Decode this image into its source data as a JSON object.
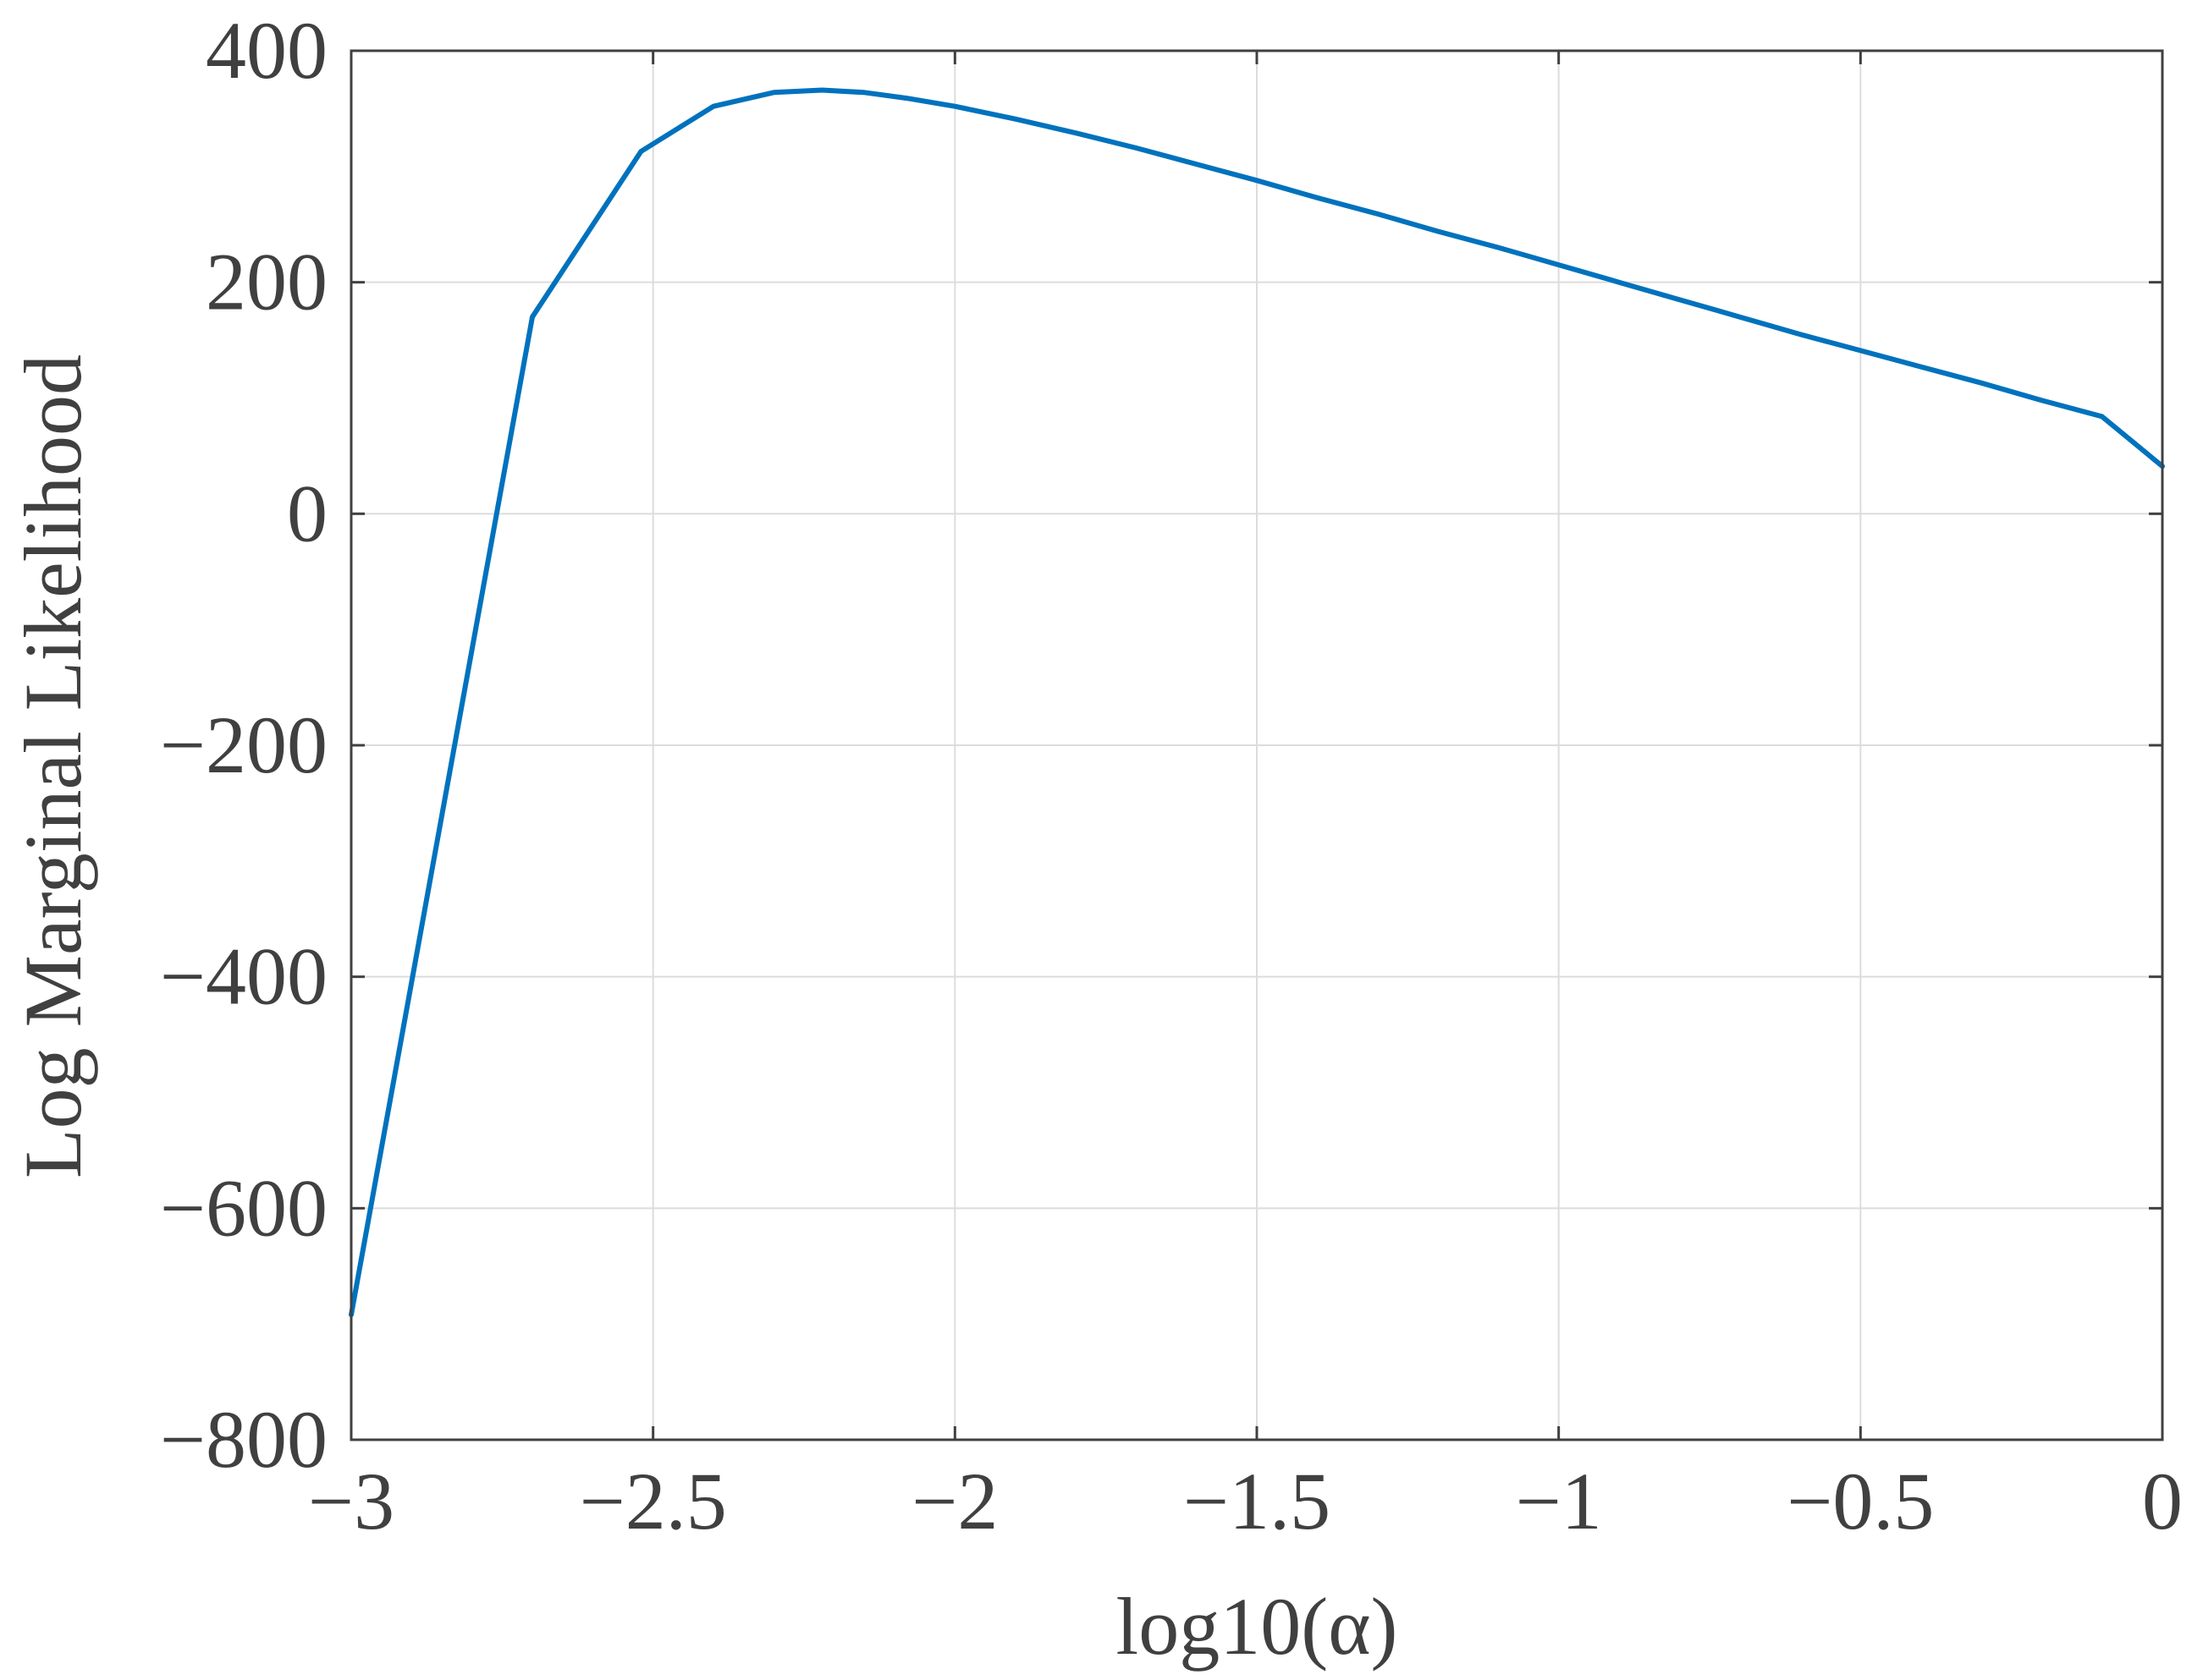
{
  "chart_data": {
    "type": "line",
    "title": "",
    "xlabel": "log10(α)",
    "ylabel": "Log Marginal Likelihood",
    "xlim": [
      -3,
      0
    ],
    "ylim": [
      -800,
      400
    ],
    "xticks": [
      -3,
      -2.5,
      -2,
      -1.5,
      -1,
      -0.5,
      0
    ],
    "xtick_labels": [
      "−3",
      "−2.5",
      "−2",
      "−1.5",
      "−1",
      "−0.5",
      "0"
    ],
    "yticks": [
      -800,
      -600,
      -400,
      -200,
      0,
      200,
      400
    ],
    "ytick_labels": [
      "−800",
      "−600",
      "−400",
      "−200",
      "0",
      "200",
      "400"
    ],
    "grid": true,
    "series": [
      {
        "color": "#0072BD",
        "x": [
          -3.0,
          -2.7,
          -2.52,
          -2.4,
          -2.3,
          -2.22,
          -2.15,
          -2.08,
          -2.0,
          -1.9,
          -1.8,
          -1.7,
          -1.6,
          -1.5,
          -1.4,
          -1.3,
          -1.2,
          -1.1,
          -1.0,
          -0.9,
          -0.8,
          -0.7,
          -0.6,
          -0.5,
          -0.4,
          -0.3,
          -0.2,
          -0.1,
          0.0
        ],
        "y": [
          -692,
          170,
          313,
          352,
          364,
          366,
          364,
          359,
          352,
          341,
          329,
          316,
          302,
          288,
          273,
          259,
          244,
          230,
          215,
          200,
          185,
          170,
          155,
          141,
          127,
          113,
          98,
          84,
          41
        ]
      }
    ]
  }
}
